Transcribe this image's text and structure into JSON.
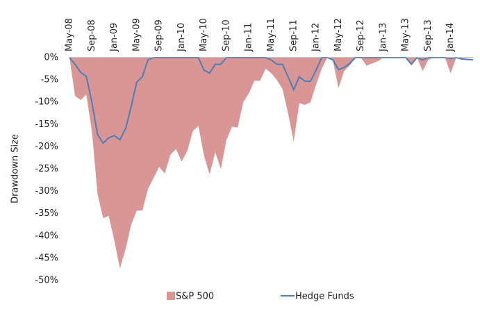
{
  "chart_data": {
    "type": "area-line",
    "y_label": "Drawdown Size",
    "categories": [
      "May-08",
      null,
      null,
      null,
      "Sep-08",
      null,
      null,
      null,
      "Jan-09",
      null,
      null,
      null,
      "May-09",
      null,
      null,
      null,
      "Sep-09",
      null,
      null,
      null,
      "Jan-10",
      null,
      null,
      null,
      "May-10",
      null,
      null,
      null,
      "Sep-10",
      null,
      null,
      null,
      "Jan-11",
      null,
      null,
      null,
      "May-11",
      null,
      null,
      null,
      "Sep-11",
      null,
      null,
      null,
      "Jan-12",
      null,
      null,
      null,
      "May-12",
      null,
      null,
      null,
      "Sep-12",
      null,
      null,
      null,
      "Jan-13",
      null,
      null,
      null,
      "May-13",
      null,
      null,
      null,
      "Sep-13",
      null,
      null,
      null,
      "Jan-14",
      null,
      null,
      null,
      null
    ],
    "series": [
      {
        "name": "S&P 500",
        "kind": "area",
        "color": "#d99694",
        "values": [
          0,
          -8.6,
          -9.5,
          -8.3,
          -16.5,
          -30.5,
          -36,
          -35.5,
          -41,
          -47.3,
          -43,
          -37.5,
          -34.3,
          -34.3,
          -29.5,
          -27,
          -24.5,
          -26,
          -21.8,
          -20.5,
          -23.3,
          -21,
          -16.5,
          -15.3,
          -22,
          -26.2,
          -21.2,
          -25,
          -18.5,
          -15.5,
          -15.7,
          -10,
          -8,
          -5.2,
          -5.2,
          -2.5,
          -3.5,
          -5,
          -7,
          -12.5,
          -18.8,
          -10.2,
          -10.6,
          -10,
          -6,
          -2.5,
          0,
          -0.7,
          -6.8,
          -3,
          -1.8,
          0,
          0,
          -1.8,
          -1.3,
          -0.8,
          0,
          0,
          0,
          0,
          0,
          -1.5,
          0,
          -3,
          -0.5,
          0,
          0,
          0,
          -3.5,
          0,
          0,
          0,
          0
        ]
      },
      {
        "name": "Hedge Funds",
        "kind": "line",
        "color": "#4a7ebb",
        "values": [
          0,
          -1.5,
          -3.3,
          -4.2,
          -10,
          -17.2,
          -19.2,
          -18,
          -17.5,
          -18.4,
          -16,
          -11,
          -5.5,
          -4.3,
          -0.5,
          0,
          0,
          0,
          0,
          0,
          0,
          0,
          0,
          0,
          -2.8,
          -3.5,
          -1.5,
          -1.5,
          0,
          0,
          0,
          0,
          0,
          0,
          0,
          0,
          -0.5,
          -1.5,
          -1.5,
          -4.3,
          -7.2,
          -4.3,
          -5.3,
          -5.3,
          -2.8,
          0,
          0,
          -0.5,
          -2.7,
          -2.2,
          -1.3,
          0,
          0,
          0,
          0,
          0,
          0,
          0,
          0,
          0,
          0,
          -1.5,
          0,
          -0.5,
          0,
          0,
          0,
          0,
          -0.2,
          0,
          -0.3,
          -0.4,
          -0.5
        ]
      }
    ],
    "ylim": [
      -50,
      0
    ],
    "yticks": [
      {
        "value": 0,
        "label": "0%"
      },
      {
        "value": -5,
        "label": "-5%"
      },
      {
        "value": -10,
        "label": "-10%"
      },
      {
        "value": -15,
        "label": "-15%"
      },
      {
        "value": -20,
        "label": "-20%"
      },
      {
        "value": -25,
        "label": "-25%"
      },
      {
        "value": -30,
        "label": "-30%"
      },
      {
        "value": -35,
        "label": "-35%"
      },
      {
        "value": -40,
        "label": "-40%"
      },
      {
        "value": -45,
        "label": "-45%"
      },
      {
        "value": -50,
        "label": "-50%"
      }
    ],
    "legend": "bottom"
  }
}
